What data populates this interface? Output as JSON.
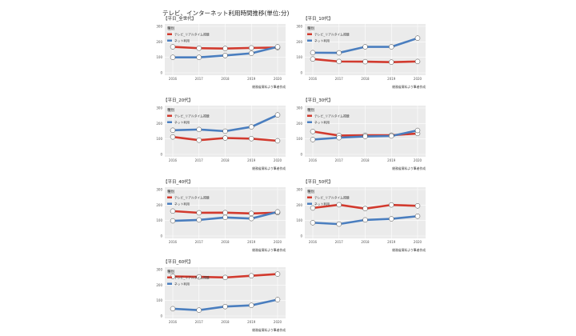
{
  "title": "テレビ、インターネット利用時間推移(単位:分)",
  "legend_title": "種別",
  "source": "総務省資料より筆者作成",
  "colors": {
    "tv": "#d23a2e",
    "net": "#4a7ebf",
    "panel": "#ebebeb"
  },
  "chart_data": [
    {
      "type": "line",
      "title": "【平日_全世代】",
      "categories": [
        "2016",
        "2017",
        "2018",
        "2019",
        "2020"
      ],
      "ylim": [
        0,
        300
      ],
      "yticks": [
        "0",
        "100",
        "200",
        "300"
      ],
      "series": [
        {
          "name": "テレビ_リアルタイム視聴",
          "values": [
            168,
            159,
            157,
            161,
            163
          ]
        },
        {
          "name": "ネット利用",
          "values": [
            100,
            100,
            112,
            126,
            168
          ]
        }
      ]
    },
    {
      "type": "line",
      "title": "【平日_10代】",
      "categories": [
        "2016",
        "2017",
        "2018",
        "2019",
        "2020"
      ],
      "ylim": [
        0,
        300
      ],
      "yticks": [
        "0",
        "100",
        "200",
        "300"
      ],
      "series": [
        {
          "name": "テレビ_リアルタイム視聴",
          "values": [
            89,
            73,
            72,
            69,
            73
          ]
        },
        {
          "name": "ネット利用",
          "values": [
            130,
            129,
            168,
            168,
            224
          ]
        }
      ]
    },
    {
      "type": "line",
      "title": "【平日_20代】",
      "categories": [
        "2016",
        "2017",
        "2018",
        "2019",
        "2020"
      ],
      "ylim": [
        0,
        300
      ],
      "yticks": [
        "0",
        "100",
        "200",
        "300"
      ],
      "series": [
        {
          "name": "テレビ_リアルタイム視聴",
          "values": [
            113,
            92,
            106,
            102,
            88
          ]
        },
        {
          "name": "ネット利用",
          "values": [
            156,
            161,
            150,
            178,
            255
          ]
        }
      ]
    },
    {
      "type": "line",
      "title": "【平日_30代】",
      "categories": [
        "2016",
        "2017",
        "2018",
        "2019",
        "2020"
      ],
      "ylim": [
        0,
        300
      ],
      "yticks": [
        "0",
        "100",
        "200",
        "300"
      ],
      "series": [
        {
          "name": "テレビ_リアルタイム視聴",
          "values": [
            148,
            122,
            124,
            124,
            135
          ]
        },
        {
          "name": "ネット利用",
          "values": [
            96,
            108,
            116,
            119,
            155
          ]
        }
      ]
    },
    {
      "type": "line",
      "title": "【平日_40代】",
      "categories": [
        "2016",
        "2017",
        "2018",
        "2019",
        "2020"
      ],
      "ylim": [
        0,
        300
      ],
      "yticks": [
        "0",
        "100",
        "200",
        "300"
      ],
      "series": [
        {
          "name": "テレビ_リアルタイム視聴",
          "values": [
            161,
            150,
            151,
            146,
            151
          ]
        },
        {
          "name": "ネット利用",
          "values": [
            98,
            104,
            120,
            113,
            156
          ]
        }
      ]
    },
    {
      "type": "line",
      "title": "【平日_50代】",
      "categories": [
        "2016",
        "2017",
        "2018",
        "2019",
        "2020"
      ],
      "ylim": [
        0,
        300
      ],
      "yticks": [
        "0",
        "100",
        "200",
        "300"
      ],
      "series": [
        {
          "name": "テレビ_リアルタイム視聴",
          "values": [
            181,
            202,
            177,
            201,
            195
          ]
        },
        {
          "name": "ネット利用",
          "values": [
            86,
            77,
            104,
            111,
            128
          ]
        }
      ]
    },
    {
      "type": "line",
      "title": "【平日_60代】",
      "categories": [
        "2016",
        "2017",
        "2018",
        "2019",
        "2020"
      ],
      "ylim": [
        0,
        300
      ],
      "yticks": [
        "0",
        "100",
        "200",
        "300"
      ],
      "series": [
        {
          "name": "テレビ_リアルタイム視聴",
          "values": [
            256,
            253,
            249,
            260,
            271
          ]
        },
        {
          "name": "ネット利用",
          "values": [
            47,
            38,
            61,
            69,
            106
          ]
        }
      ]
    }
  ]
}
